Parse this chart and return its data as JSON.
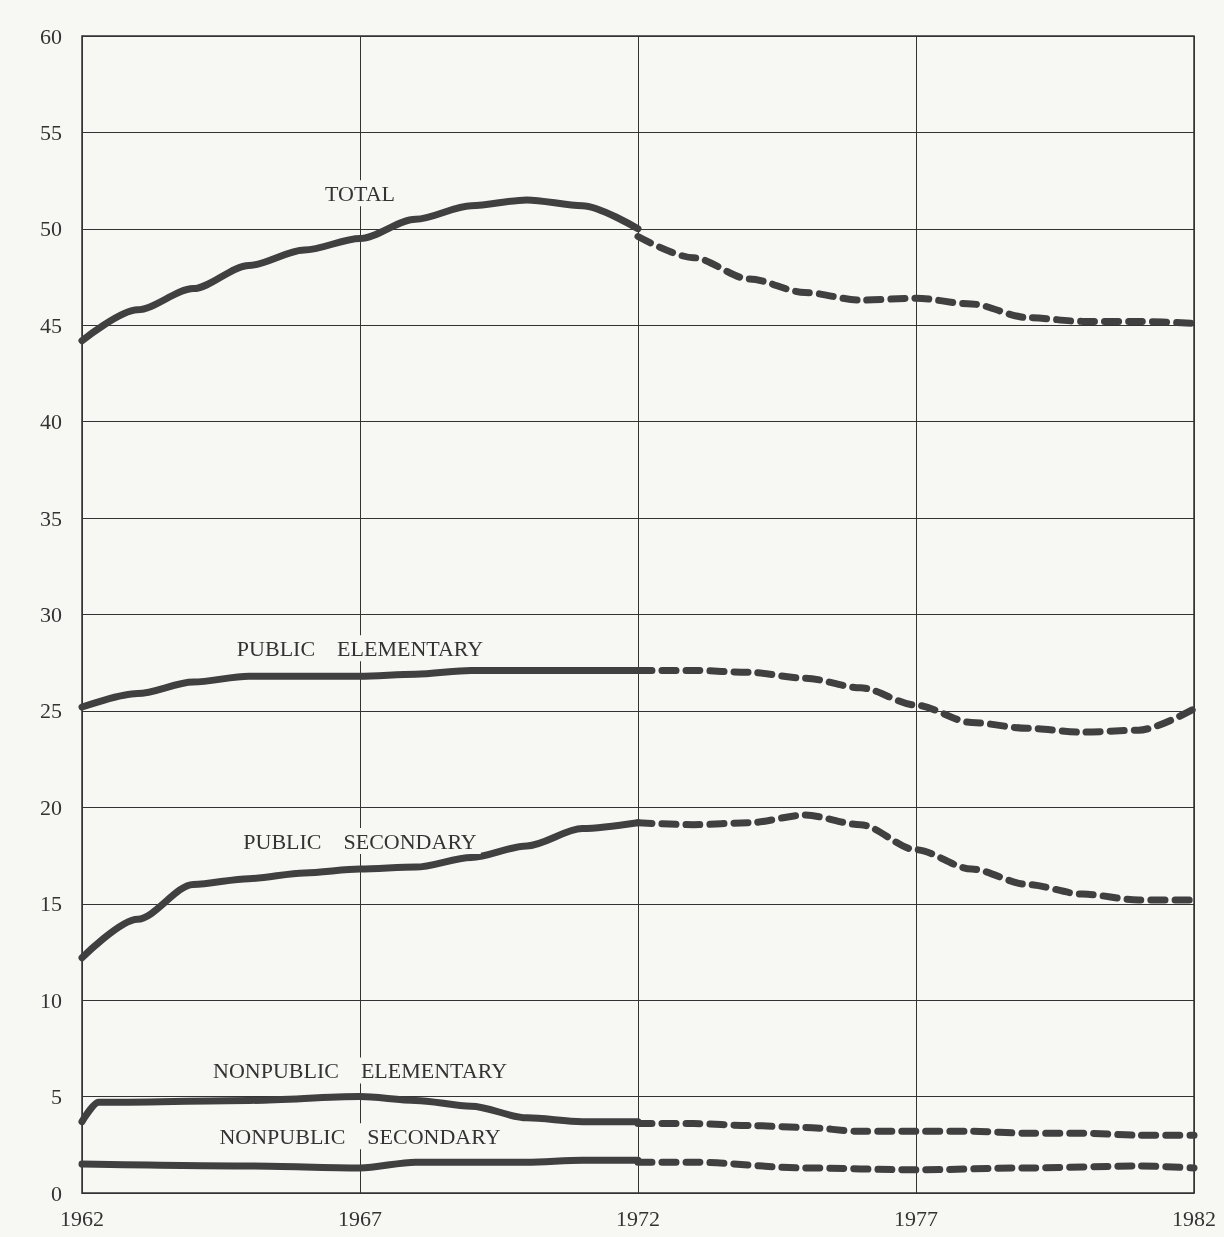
{
  "chart_data": {
    "type": "line",
    "xlim": [
      1962,
      1982
    ],
    "xticks": [
      1962,
      1967,
      1972,
      1977,
      1982
    ],
    "ylim": [
      0,
      60
    ],
    "yticks": [
      0,
      5,
      10,
      15,
      20,
      25,
      30,
      35,
      40,
      45,
      50,
      55,
      60
    ],
    "grid": true,
    "marker": "none",
    "series": [
      {
        "name": "TOTAL",
        "color": "#404040",
        "line_style": "solid",
        "x": [
          1962,
          1963,
          1964,
          1965,
          1966,
          1967,
          1968,
          1969,
          1970,
          1971,
          1972
        ],
        "values": [
          44.2,
          45.8,
          46.9,
          48.1,
          48.9,
          49.5,
          50.5,
          51.2,
          51.5,
          51.2,
          50.0
        ]
      },
      {
        "color": "#404040",
        "line_style": "dashed",
        "x": [
          1972,
          1973,
          1974,
          1975,
          1976,
          1977,
          1978,
          1979,
          1980,
          1981,
          1982
        ],
        "values": [
          49.6,
          48.5,
          47.4,
          46.7,
          46.3,
          46.4,
          46.1,
          45.4,
          45.2,
          45.2,
          45.1
        ]
      },
      {
        "name": "PUBLIC    ELEMENTARY",
        "color": "#404040",
        "line_style": "solid",
        "x": [
          1962,
          1963,
          1964,
          1965,
          1966,
          1967,
          1968,
          1969,
          1970,
          1971,
          1972
        ],
        "values": [
          25.2,
          25.9,
          26.5,
          26.8,
          26.8,
          26.8,
          26.9,
          27.1,
          27.1,
          27.1,
          27.1
        ]
      },
      {
        "color": "#404040",
        "line_style": "dashed",
        "x": [
          1972,
          1973,
          1974,
          1975,
          1976,
          1977,
          1978,
          1979,
          1980,
          1981,
          1982
        ],
        "values": [
          27.1,
          27.1,
          27.0,
          26.7,
          26.2,
          25.3,
          24.4,
          24.1,
          23.9,
          24.0,
          25.1
        ]
      },
      {
        "name": "PUBLIC    SECONDARY",
        "color": "#404040",
        "line_style": "solid",
        "x": [
          1962,
          1963,
          1964,
          1965,
          1966,
          1967,
          1968,
          1969,
          1970,
          1971,
          1972
        ],
        "values": [
          12.2,
          14.2,
          16.0,
          16.3,
          16.6,
          16.8,
          16.9,
          17.4,
          18.0,
          18.9,
          19.2
        ]
      },
      {
        "color": "#404040",
        "line_style": "dashed",
        "x": [
          1972,
          1973,
          1974,
          1975,
          1976,
          1977,
          1978,
          1979,
          1980,
          1981,
          1982
        ],
        "values": [
          19.2,
          19.1,
          19.2,
          19.6,
          19.1,
          17.8,
          16.8,
          16.0,
          15.5,
          15.2,
          15.2
        ]
      },
      {
        "name": "NONPUBLIC    ELEMENTARY",
        "color": "#404040",
        "line_style": "solid",
        "x": [
          1962,
          1962.3,
          1965,
          1967,
          1968,
          1969,
          1970,
          1971,
          1972
        ],
        "values": [
          3.7,
          4.7,
          4.8,
          5.0,
          4.8,
          4.5,
          3.9,
          3.7,
          3.7
        ]
      },
      {
        "color": "#404040",
        "line_style": "dashed",
        "x": [
          1972,
          1973,
          1974,
          1975,
          1976,
          1977,
          1978,
          1979,
          1980,
          1981,
          1982
        ],
        "values": [
          3.6,
          3.6,
          3.5,
          3.4,
          3.2,
          3.2,
          3.2,
          3.1,
          3.1,
          3.0,
          3.0
        ]
      },
      {
        "name": "NONPUBLIC    SECONDARY",
        "color": "#404040",
        "line_style": "solid",
        "x": [
          1962,
          1965,
          1967,
          1968,
          1970,
          1971,
          1972
        ],
        "values": [
          1.5,
          1.4,
          1.3,
          1.6,
          1.6,
          1.7,
          1.7
        ]
      },
      {
        "color": "#404040",
        "line_style": "dashed",
        "x": [
          1972,
          1973,
          1975,
          1977,
          1979,
          1981,
          1982
        ],
        "values": [
          1.6,
          1.6,
          1.3,
          1.2,
          1.3,
          1.4,
          1.3
        ]
      }
    ]
  }
}
